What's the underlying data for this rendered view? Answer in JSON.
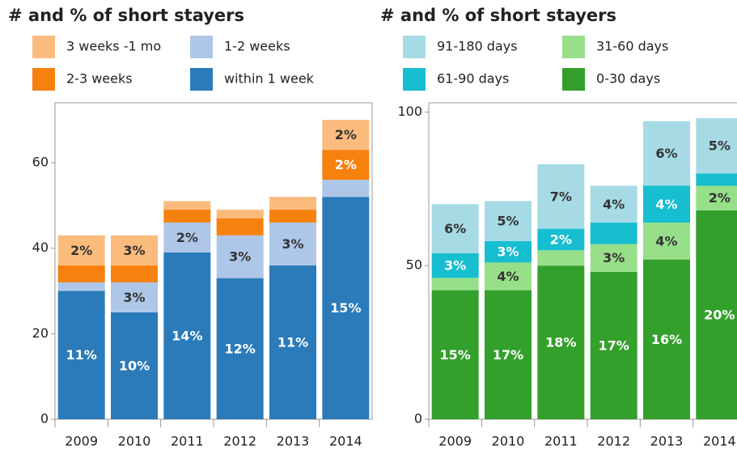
{
  "chart_data": [
    {
      "type": "stacked_bar",
      "title": "# and % of short stayers",
      "categories": [
        "2009",
        "2010",
        "2011",
        "2012",
        "2013",
        "2014"
      ],
      "ylim": [
        0,
        74
      ],
      "yticks": [
        0,
        20,
        40,
        60
      ],
      "series": [
        {
          "name": "within 1 week",
          "color": "#2b7bba",
          "values": [
            30,
            25,
            39,
            33,
            36,
            52
          ],
          "value_labels": [
            "11%",
            "10%",
            "14%",
            "12%",
            "11%",
            "15%"
          ]
        },
        {
          "name": "1-2 weeks",
          "color": "#aec7e8",
          "values": [
            2,
            7,
            7,
            10,
            10,
            4
          ],
          "value_labels": [
            null,
            "3%",
            "2%",
            "3%",
            "3%",
            null
          ]
        },
        {
          "name": "2-3 weeks",
          "color": "#f7810f",
          "values": [
            4,
            4,
            3,
            4,
            3,
            7
          ],
          "value_labels": [
            null,
            null,
            null,
            null,
            null,
            "2%"
          ]
        },
        {
          "name": "3 weeks -1 mo",
          "color": "#fbbb7d",
          "values": [
            7,
            7,
            2,
            2,
            3,
            7
          ],
          "value_labels": [
            "2%",
            "3%",
            null,
            null,
            null,
            "2%"
          ]
        }
      ]
    },
    {
      "type": "stacked_bar",
      "title": "# and % of short stayers",
      "categories": [
        "2009",
        "2010",
        "2011",
        "2012",
        "2013",
        "2014"
      ],
      "ylim": [
        0,
        103
      ],
      "yticks": [
        0,
        50,
        100
      ],
      "series": [
        {
          "name": "0-30 days",
          "color": "#33a02c",
          "values": [
            42,
            42,
            50,
            48,
            52,
            68
          ],
          "value_labels": [
            "15%",
            "17%",
            "18%",
            "17%",
            "16%",
            "20%"
          ]
        },
        {
          "name": "31-60 days",
          "color": "#98df8a",
          "values": [
            4,
            9,
            5,
            9,
            12,
            8
          ],
          "value_labels": [
            null,
            "4%",
            null,
            "3%",
            "4%",
            "2%"
          ]
        },
        {
          "name": "61-90 days",
          "color": "#17becf",
          "values": [
            8,
            7,
            7,
            7,
            12,
            4
          ],
          "value_labels": [
            "3%",
            "3%",
            "2%",
            null,
            "4%",
            null
          ]
        },
        {
          "name": "91-180 days",
          "color": "#a6dbe6",
          "values": [
            16,
            13,
            21,
            12,
            21,
            18
          ],
          "value_labels": [
            "6%",
            "5%",
            "7%",
            "4%",
            "6%",
            "5%"
          ]
        }
      ]
    }
  ]
}
